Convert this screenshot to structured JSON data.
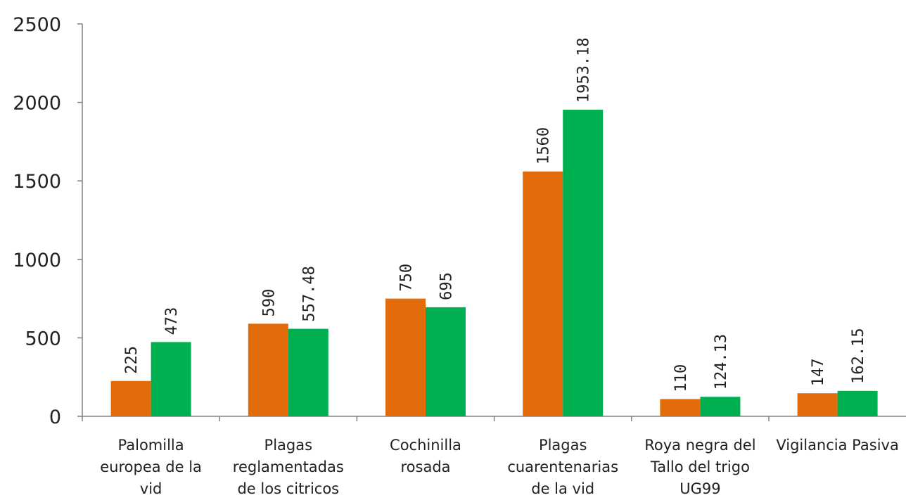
{
  "chart_data": {
    "type": "bar",
    "categories": [
      [
        "Palomilla",
        "europea de la",
        "vid"
      ],
      [
        "Plagas",
        "reglamentadas",
        "de los citricos"
      ],
      [
        "Cochinilla",
        "rosada"
      ],
      [
        "Plagas",
        "cuarentenarias",
        "de la vid"
      ],
      [
        "Roya negra del",
        "Tallo del trigo",
        "UG99"
      ],
      [
        "Vigilancia Pasiva"
      ]
    ],
    "series": [
      {
        "color": "#E36C0A",
        "values": [
          225,
          590,
          750,
          1560,
          110,
          147
        ],
        "labels": [
          "225",
          "590",
          "750",
          "1560",
          "110",
          "147"
        ]
      },
      {
        "color": "#00B050",
        "values": [
          473,
          557.48,
          695,
          1953.18,
          124.13,
          162.15
        ],
        "labels": [
          "473",
          "557.48",
          "695",
          "1953.18",
          "124.13",
          "162.15"
        ]
      }
    ],
    "ylim": [
      0,
      2500
    ],
    "yticks": [
      "0",
      "500",
      "1000",
      "1500",
      "2000",
      "2500"
    ],
    "grid": false,
    "legend": "none",
    "axis_color": "#808080"
  }
}
